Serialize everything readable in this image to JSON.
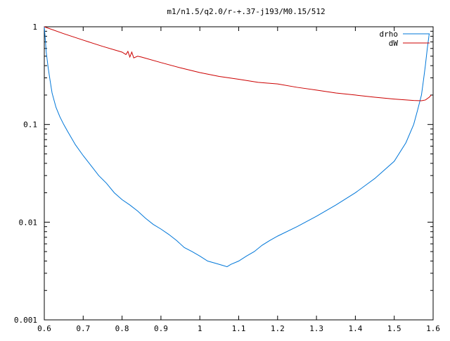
{
  "chart_data": {
    "type": "line",
    "title": "m1/n1.5/q2.0/r-+.37-j193/M0.15/512",
    "xlabel": "",
    "ylabel": "",
    "xlim": [
      0.6,
      1.6
    ],
    "ylim": [
      0.001,
      1
    ],
    "y_scale": "log",
    "grid": false,
    "legend_position": "top-right",
    "x_ticks": [
      0.6,
      0.7,
      0.8,
      0.9,
      1.0,
      1.1,
      1.2,
      1.3,
      1.4,
      1.5,
      1.6
    ],
    "x_tick_labels": [
      "0.6",
      "0.7",
      "0.8",
      "0.9",
      "1",
      "1.1",
      "1.2",
      "1.3",
      "1.4",
      "1.5",
      "1.6"
    ],
    "y_ticks": [
      0.001,
      0.01,
      0.1,
      1
    ],
    "y_tick_labels": [
      "0.001",
      "0.01",
      "0.1",
      "1"
    ],
    "series": [
      {
        "name": "drho",
        "color": "#0077d9",
        "x": [
          0.6,
          0.602,
          0.605,
          0.61,
          0.615,
          0.62,
          0.63,
          0.64,
          0.65,
          0.66,
          0.68,
          0.7,
          0.72,
          0.74,
          0.76,
          0.78,
          0.8,
          0.82,
          0.84,
          0.86,
          0.88,
          0.9,
          0.92,
          0.94,
          0.96,
          0.98,
          1.0,
          1.02,
          1.04,
          1.06,
          1.07,
          1.08,
          1.1,
          1.12,
          1.14,
          1.16,
          1.18,
          1.2,
          1.25,
          1.3,
          1.35,
          1.4,
          1.45,
          1.5,
          1.53,
          1.55,
          1.56,
          1.57,
          1.575,
          1.58,
          1.585,
          1.59
        ],
        "values": [
          1.0,
          0.8,
          0.55,
          0.38,
          0.28,
          0.21,
          0.15,
          0.12,
          0.1,
          0.085,
          0.062,
          0.048,
          0.038,
          0.03,
          0.025,
          0.02,
          0.017,
          0.015,
          0.013,
          0.011,
          0.0095,
          0.0085,
          0.0075,
          0.0065,
          0.0055,
          0.005,
          0.0045,
          0.004,
          0.0038,
          0.0036,
          0.0035,
          0.0037,
          0.004,
          0.0045,
          0.005,
          0.0058,
          0.0065,
          0.0072,
          0.009,
          0.0115,
          0.015,
          0.02,
          0.028,
          0.042,
          0.065,
          0.1,
          0.14,
          0.2,
          0.28,
          0.4,
          0.6,
          0.85
        ]
      },
      {
        "name": "dW",
        "color": "#cc0000",
        "x": [
          0.6,
          0.65,
          0.7,
          0.75,
          0.8,
          0.81,
          0.815,
          0.82,
          0.825,
          0.83,
          0.84,
          0.85,
          0.9,
          0.95,
          1.0,
          1.05,
          1.1,
          1.15,
          1.2,
          1.25,
          1.3,
          1.35,
          1.4,
          1.45,
          1.5,
          1.55,
          1.57,
          1.58,
          1.59,
          1.595
        ],
        "values": [
          1.0,
          0.85,
          0.73,
          0.63,
          0.55,
          0.52,
          0.56,
          0.49,
          0.55,
          0.48,
          0.5,
          0.49,
          0.43,
          0.38,
          0.34,
          0.31,
          0.29,
          0.27,
          0.26,
          0.24,
          0.225,
          0.21,
          0.2,
          0.19,
          0.182,
          0.176,
          0.175,
          0.178,
          0.19,
          0.2
        ]
      }
    ]
  }
}
